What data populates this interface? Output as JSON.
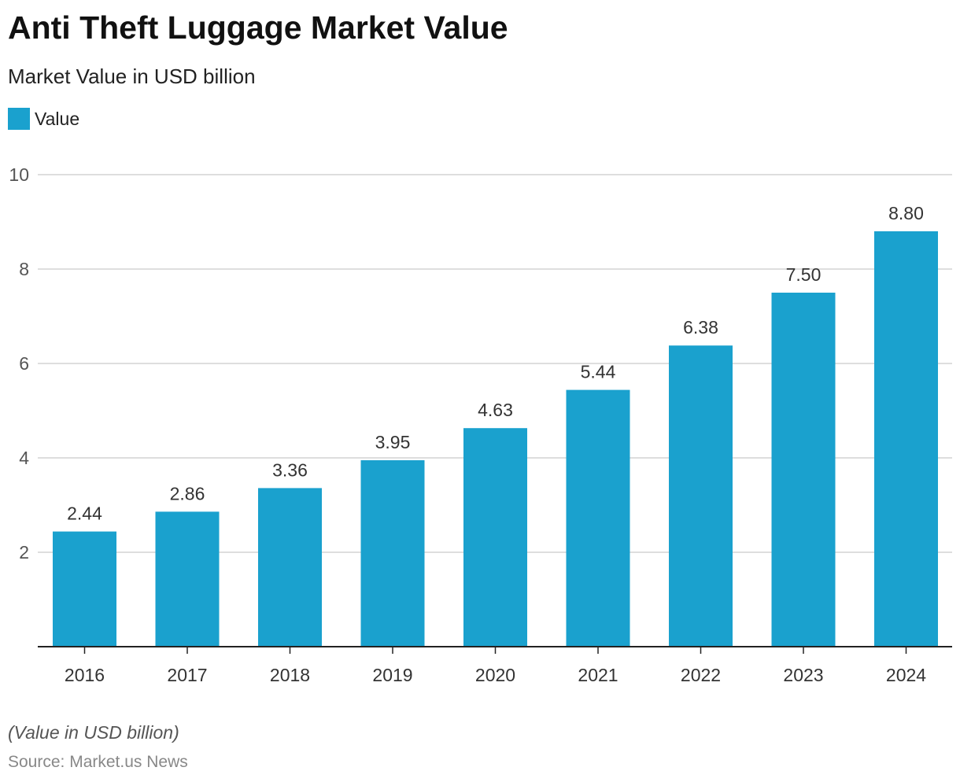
{
  "header": {
    "title": "Anti Theft Luggage Market Value",
    "subtitle": "Market Value in USD billion"
  },
  "legend": {
    "label": "Value"
  },
  "footer": {
    "note": "(Value in USD billion)",
    "source": "Source: Market.us News"
  },
  "colors": {
    "bar": "#1aa1ce",
    "grid": "#d4d4d4",
    "axis": "#222222"
  },
  "chart_data": {
    "type": "bar",
    "title": "Anti Theft Luggage Market Value",
    "subtitle": "Market Value in USD billion",
    "xlabel": "",
    "ylabel": "",
    "categories": [
      "2016",
      "2017",
      "2018",
      "2019",
      "2020",
      "2021",
      "2022",
      "2023",
      "2024"
    ],
    "series": [
      {
        "name": "Value",
        "values": [
          2.44,
          2.86,
          3.36,
          3.95,
          4.63,
          5.44,
          6.38,
          7.5,
          8.8
        ],
        "labels": [
          "2.44",
          "2.86",
          "3.36",
          "3.95",
          "4.63",
          "5.44",
          "6.38",
          "7.50",
          "8.80"
        ]
      }
    ],
    "ylim": [
      0,
      10
    ],
    "yticks": [
      2,
      4,
      6,
      8,
      10
    ],
    "grid": true,
    "legend_position": "top-left"
  }
}
